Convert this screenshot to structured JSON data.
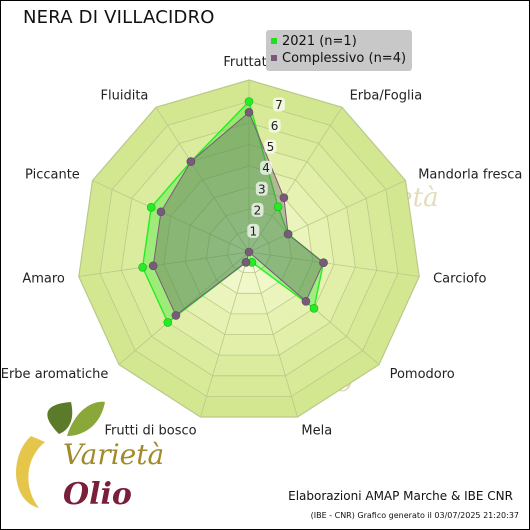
{
  "title": "NERA DI VILLACIDRO",
  "legend": {
    "items": [
      {
        "label": "2021 (n=1)",
        "color": "#22dd22"
      },
      {
        "label": "Complessivo (n=4)",
        "color": "#7a5a7a"
      }
    ]
  },
  "credit": "Elaborazioni AMAP Marche & IBE CNR",
  "generated": "(IBE - CNR) Grafico generato il 03/07/2025 21:20:37",
  "logo": {
    "word1": "Varietà",
    "word2": "Olio"
  },
  "chart_data": {
    "type": "radar",
    "categories": [
      "Fruttato",
      "Erba/Foglia",
      "Mandorla fresca",
      "Carciofo",
      "Pomodoro",
      "Mela",
      "Frutti di bosco",
      "Erbe aromatiche",
      "Amaro",
      "Piccante",
      "Fluidita"
    ],
    "ticks": [
      "1",
      "2",
      "3",
      "4",
      "5",
      "6",
      "7"
    ],
    "rmax": 8,
    "series": [
      {
        "name": "2021 (n=1)",
        "values": [
          7.0,
          2.5,
          2.0,
          3.5,
          4.0,
          0.5,
          0.5,
          5.0,
          5.0,
          5.0,
          5.0
        ],
        "color": "#22ee22"
      },
      {
        "name": "Complessivo (n=4)",
        "values": [
          6.5,
          3.0,
          2.0,
          3.5,
          3.5,
          0.0,
          0.5,
          4.5,
          4.5,
          4.5,
          5.0
        ],
        "color": "#7a5a7a"
      }
    ]
  }
}
